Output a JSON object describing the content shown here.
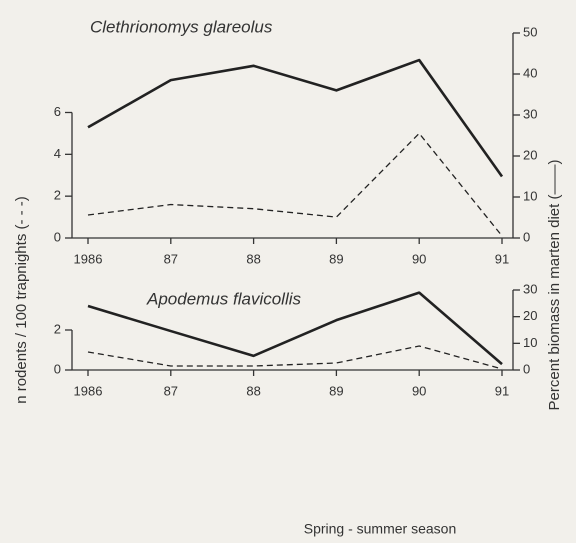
{
  "chart_data": [
    {
      "type": "line",
      "title": "Clethrionomys glareolus",
      "ylabel": "n rodents / 100 trapnights (- - -)",
      "y2label": "Percent biomass in marten diet (——)",
      "categories": [
        "1986",
        "87",
        "88",
        "89",
        "90",
        "91"
      ],
      "ylim": [
        0,
        9.8
      ],
      "yticks": [
        0,
        2,
        4,
        6
      ],
      "y2lim": [
        0,
        50
      ],
      "y2ticks": [
        0,
        10,
        20,
        30,
        40,
        50
      ],
      "series": [
        {
          "color": "#222222",
          "line_style": "dashed",
          "values": [
            1.1,
            1.6,
            1.4,
            1.0,
            5.0,
            0.1
          ]
        },
        {
          "color": "#222222",
          "line_style": "solid",
          "axis": "y2",
          "values": [
            27,
            38.5,
            42,
            36,
            43.4,
            15
          ]
        }
      ]
    },
    {
      "type": "line",
      "title": "Apodemus flavicollis",
      "xlabel": "Spring - summer season",
      "categories": [
        "1986",
        "87",
        "88",
        "89",
        "90",
        "91"
      ],
      "ylim": [
        0,
        4
      ],
      "yticks": [
        0,
        2
      ],
      "y2lim": [
        0,
        30
      ],
      "y2ticks": [
        0,
        10,
        20,
        30
      ],
      "series": [
        {
          "color": "#222222",
          "line_style": "dashed",
          "values": [
            0.9,
            0.2,
            0.2,
            0.35,
            1.2,
            0.05
          ]
        },
        {
          "color": "#222222",
          "line_style": "solid",
          "axis": "y2",
          "values": [
            24,
            14.6,
            5.3,
            18.7,
            29,
            2.2
          ]
        }
      ]
    }
  ]
}
